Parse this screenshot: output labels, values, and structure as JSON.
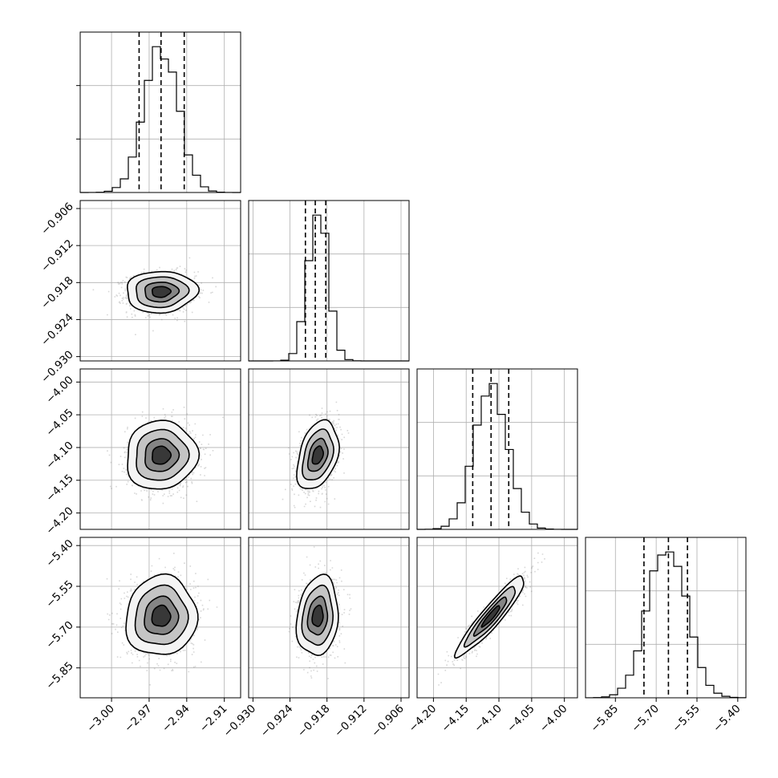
{
  "chart_data": {
    "type": "corner",
    "parameters": [
      {
        "name": "",
        "mean": -2.9605,
        "sd": 0.0135,
        "quantiles": [
          -2.978,
          -2.9605,
          -2.942
        ],
        "range": [
          -3.025,
          -2.897
        ],
        "ticks": [
          -3.0,
          -2.97,
          -2.94,
          -2.91
        ],
        "tick_labels": [
          "−3.00",
          "−2.97",
          "−2.94",
          "−2.91"
        ]
      },
      {
        "name": "",
        "mean": -0.9195,
        "sd": 0.0016,
        "quantiles": [
          -0.9215,
          -0.9199,
          -0.9182
        ],
        "range": [
          -0.9307,
          -0.9047
        ],
        "ticks": [
          -0.93,
          -0.924,
          -0.918,
          -0.912,
          -0.906
        ],
        "tick_labels": [
          "−0.930",
          "−0.924",
          "−0.918",
          "−0.912",
          "−0.906"
        ]
      },
      {
        "name": "",
        "mean": -4.112,
        "sd": 0.025,
        "quantiles": [
          -4.14,
          -4.112,
          -4.085
        ],
        "range": [
          -4.225,
          -3.98
        ],
        "ticks": [
          -4.2,
          -4.15,
          -4.1,
          -4.05,
          -4.0
        ],
        "tick_labels": [
          "−4.20",
          "−4.15",
          "−4.10",
          "−4.05",
          "−4.00"
        ]
      },
      {
        "name": "",
        "mean": -5.66,
        "sd": 0.07,
        "quantiles": [
          -5.745,
          -5.655,
          -5.585
        ],
        "range": [
          -5.96,
          -5.37
        ],
        "ticks": [
          -5.85,
          -5.7,
          -5.55,
          -5.4
        ],
        "tick_labels": [
          "−5.85",
          "−5.70",
          "−5.55",
          "−5.40"
        ]
      }
    ],
    "correlations": [
      [
        1.0,
        0.05,
        0.05,
        0.05
      ],
      [
        0.05,
        1.0,
        0.35,
        0.15
      ],
      [
        0.05,
        0.35,
        1.0,
        0.93
      ],
      [
        0.05,
        0.15,
        0.93,
        1.0
      ]
    ],
    "histogram_y_ticks": 2,
    "quantile_levels": [
      0.16,
      0.5,
      0.84
    ],
    "grid": true,
    "colors": {
      "lines": "#000000",
      "points": "#6e6e6e",
      "grid": "#b0b0b0"
    }
  }
}
